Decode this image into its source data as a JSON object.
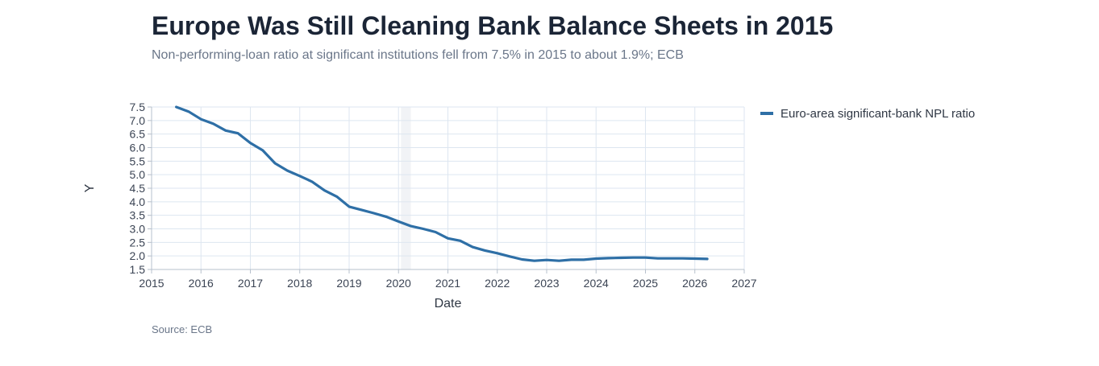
{
  "header": {
    "title": "Europe Was Still Cleaning Bank Balance Sheets in 2015",
    "subtitle": "Non-performing-loan ratio at significant institutions fell from 7.5% in 2015 to about 1.9%; ECB"
  },
  "footer": {
    "source": "Source: ECB"
  },
  "colors": {
    "series": "#2e6fa6",
    "grid": "#dde6f0",
    "axis": "#b7c0cc",
    "shade": "#f1f3f6"
  },
  "chart_data": {
    "type": "line",
    "xlabel": "Date",
    "ylabel": "Y",
    "xlim": [
      2015,
      2027
    ],
    "ylim": [
      1.5,
      7.5
    ],
    "x_ticks": [
      "2015",
      "2016",
      "2017",
      "2018",
      "2019",
      "2020",
      "2021",
      "2022",
      "2023",
      "2024",
      "2025",
      "2026",
      "2027"
    ],
    "y_ticks": [
      "1.5",
      "2.0",
      "2.5",
      "3.0",
      "3.5",
      "4.0",
      "4.5",
      "5.0",
      "5.5",
      "6.0",
      "6.5",
      "7.0",
      "7.5"
    ],
    "grid": true,
    "legend_position": "right",
    "shaded_region": [
      2020.05,
      2020.25
    ],
    "series": [
      {
        "name": "Euro-area significant-bank NPL ratio",
        "x": [
          "2015-07",
          "2015-10",
          "2016-01",
          "2016-04",
          "2016-07",
          "2016-10",
          "2017-01",
          "2017-04",
          "2017-07",
          "2017-10",
          "2018-01",
          "2018-04",
          "2018-07",
          "2018-10",
          "2019-01",
          "2019-04",
          "2019-07",
          "2019-10",
          "2020-01",
          "2020-04",
          "2020-07",
          "2020-10",
          "2021-01",
          "2021-04",
          "2021-07",
          "2021-10",
          "2022-01",
          "2022-04",
          "2022-07",
          "2022-10",
          "2023-01",
          "2023-04",
          "2023-07",
          "2023-10",
          "2024-01",
          "2024-04",
          "2024-07",
          "2024-10",
          "2025-01",
          "2025-04",
          "2025-07",
          "2025-10",
          "2026-01",
          "2026-04"
        ],
        "y": [
          7.5,
          7.33,
          7.05,
          6.88,
          6.63,
          6.53,
          6.17,
          5.9,
          5.42,
          5.15,
          4.95,
          4.74,
          4.42,
          4.19,
          3.82,
          3.7,
          3.58,
          3.45,
          3.27,
          3.1,
          3.0,
          2.88,
          2.65,
          2.56,
          2.33,
          2.2,
          2.1,
          1.98,
          1.87,
          1.82,
          1.85,
          1.82,
          1.86,
          1.86,
          1.9,
          1.92,
          1.93,
          1.94,
          1.94,
          1.91,
          1.91,
          1.91,
          1.9,
          1.89
        ]
      }
    ]
  }
}
